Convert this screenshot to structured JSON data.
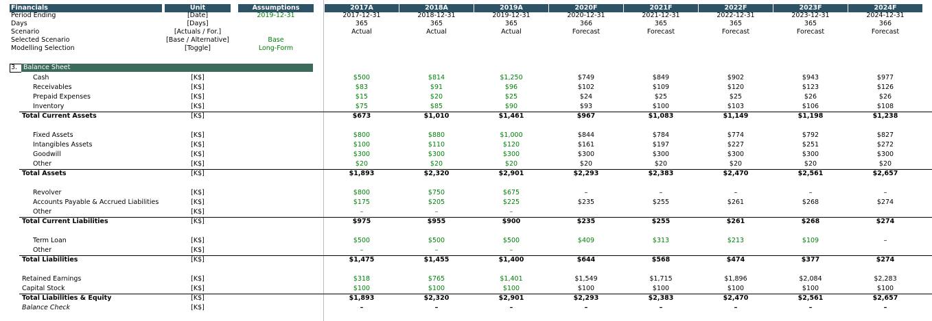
{
  "header": {
    "financials_label": "Financials",
    "unit_label": "Unit",
    "assumptions_label": "Assumptions",
    "periods": [
      "2017A",
      "2018A",
      "2019A",
      "2020F",
      "2021F",
      "2022F",
      "2023F",
      "2024F"
    ]
  },
  "meta_rows": [
    {
      "label": "Period Ending",
      "unit": "[Date]",
      "assumption": "2019-12-31",
      "values": [
        "2017-12-31",
        "2018-12-31",
        "2019-12-31",
        "2020-12-31",
        "2021-12-31",
        "2022-12-31",
        "2023-12-31",
        "2024-12-31"
      ]
    },
    {
      "label": "Days",
      "unit": "[Days]",
      "assumption": "",
      "values": [
        "365",
        "365",
        "365",
        "366",
        "365",
        "365",
        "365",
        "366"
      ]
    },
    {
      "label": "Scenario",
      "unit": "[Actuals / For.]",
      "assumption": "",
      "values": [
        "Actual",
        "Actual",
        "Actual",
        "Forecast",
        "Forecast",
        "Forecast",
        "Forecast",
        "Forecast"
      ]
    },
    {
      "label": "Selected Scenario",
      "unit": "[Base / Alternative]",
      "assumption": "Base",
      "values": [
        "",
        "",
        "",
        "",
        "",
        "",
        "",
        ""
      ]
    },
    {
      "label": "Modelling Selection",
      "unit": "[Toggle]",
      "assumption": "Long-Form",
      "values": [
        "",
        "",
        "",
        "",
        "",
        "",
        "",
        ""
      ]
    }
  ],
  "section": {
    "number": "3.",
    "title": "Balance Sheet"
  },
  "rows": [
    {
      "label": "Cash",
      "unit": "[K$]",
      "values": [
        "$500",
        "$814",
        "$1,250",
        "$749",
        "$849",
        "$902",
        "$943",
        "$977"
      ]
    },
    {
      "label": "Receivables",
      "unit": "[K$]",
      "values": [
        "$83",
        "$91",
        "$96",
        "$102",
        "$109",
        "$120",
        "$123",
        "$126"
      ]
    },
    {
      "label": "Prepaid Expenses",
      "unit": "[K$]",
      "values": [
        "$15",
        "$20",
        "$25",
        "$24",
        "$25",
        "$25",
        "$26",
        "$26"
      ]
    },
    {
      "label": "Inventory",
      "unit": "[K$]",
      "values": [
        "$75",
        "$85",
        "$90",
        "$93",
        "$100",
        "$103",
        "$106",
        "$108"
      ]
    },
    {
      "label": "Total Current Assets",
      "unit": "[K$]",
      "values": [
        "$673",
        "$1,010",
        "$1,461",
        "$967",
        "$1,083",
        "$1,149",
        "$1,198",
        "$1,238"
      ]
    },
    {
      "label": "Fixed Assets",
      "unit": "[K$]",
      "values": [
        "$800",
        "$880",
        "$1,000",
        "$844",
        "$784",
        "$774",
        "$792",
        "$827"
      ]
    },
    {
      "label": "Intangibles Assets",
      "unit": "[K$]",
      "values": [
        "$100",
        "$110",
        "$120",
        "$161",
        "$197",
        "$227",
        "$251",
        "$272"
      ]
    },
    {
      "label": "Goodwill",
      "unit": "[K$]",
      "values": [
        "$300",
        "$300",
        "$300",
        "$300",
        "$300",
        "$300",
        "$300",
        "$300"
      ]
    },
    {
      "label": "Other",
      "unit": "[K$]",
      "values": [
        "$20",
        "$20",
        "$20",
        "$20",
        "$20",
        "$20",
        "$20",
        "$20"
      ]
    },
    {
      "label": "Total Assets",
      "unit": "[K$]",
      "values": [
        "$1,893",
        "$2,320",
        "$2,901",
        "$2,293",
        "$2,383",
        "$2,470",
        "$2,561",
        "$2,657"
      ]
    },
    {
      "label": "Revolver",
      "unit": "[K$]",
      "values": [
        "$800",
        "$750",
        "$675",
        "–",
        "–",
        "–",
        "–",
        "–"
      ]
    },
    {
      "label": "Accounts Payable & Accrued Liabilities",
      "unit": "[K$]",
      "values": [
        "$175",
        "$205",
        "$225",
        "$235",
        "$255",
        "$261",
        "$268",
        "$274"
      ]
    },
    {
      "label": "Other",
      "unit": "[K$]",
      "values": [
        "–",
        "–",
        "–",
        "",
        "",
        "",
        "",
        ""
      ]
    },
    {
      "label": "Total Current Liabilities",
      "unit": "[K$]",
      "values": [
        "$975",
        "$955",
        "$900",
        "$235",
        "$255",
        "$261",
        "$268",
        "$274"
      ]
    },
    {
      "label": "Term Loan",
      "unit": "[K$]",
      "values": [
        "$500",
        "$500",
        "$500",
        "$409",
        "$313",
        "$213",
        "$109",
        "–"
      ]
    },
    {
      "label": "Other",
      "unit": "[K$]",
      "values": [
        "–",
        "–",
        "–",
        "",
        "",
        "",
        "",
        ""
      ]
    },
    {
      "label": "Total Liabilities",
      "unit": "[K$]",
      "values": [
        "$1,475",
        "$1,455",
        "$1,400",
        "$644",
        "$568",
        "$474",
        "$377",
        "$274"
      ]
    },
    {
      "label": "Retained Earnings",
      "unit": "[K$]",
      "values": [
        "$318",
        "$765",
        "$1,401",
        "$1,549",
        "$1,715",
        "$1,896",
        "$2,084",
        "$2,283"
      ]
    },
    {
      "label": "Capital Stock",
      "unit": "[K$]",
      "values": [
        "$100",
        "$100",
        "$100",
        "$100",
        "$100",
        "$100",
        "$100",
        "$100"
      ]
    },
    {
      "label": "Total Liabilities & Equity",
      "unit": "[K$]",
      "values": [
        "$1,893",
        "$2,320",
        "$2,901",
        "$2,293",
        "$2,383",
        "$2,470",
        "$2,561",
        "$2,657"
      ]
    },
    {
      "label": "Balance Check",
      "unit": "[K$]",
      "values": [
        "–",
        "–",
        "–",
        "–",
        "–",
        "–",
        "–",
        "–"
      ]
    }
  ],
  "colors": {
    "header": "#2e5266",
    "section": "#3d6b5a",
    "input_green": "#00800a"
  }
}
